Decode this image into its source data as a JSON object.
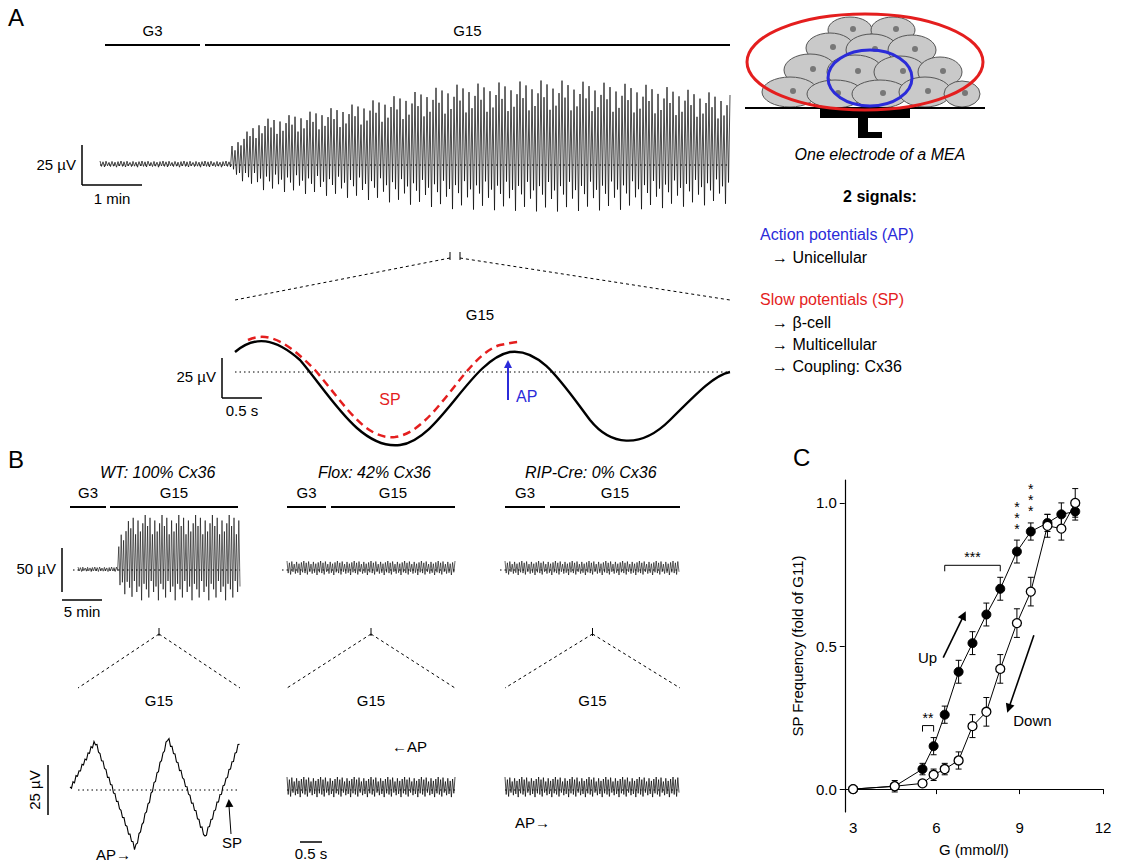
{
  "panels": {
    "A": {
      "letter": "A",
      "stimulus": [
        "G3",
        "G15"
      ],
      "scale_bar": {
        "vertical": "25 µV",
        "horizontal": "1 min"
      },
      "zoom": {
        "stimulus": "G15",
        "scale_bar": {
          "vertical": "25 µV",
          "horizontal": "0.5 s"
        },
        "sp_label": "SP",
        "ap_label": "AP"
      },
      "diagram": {
        "caption": "One electrode of a MEA",
        "heading": "2 signals:",
        "items": [
          {
            "title": "Action potentials (AP)",
            "color": "#2b2bd9",
            "lines": [
              "→ Unicellular"
            ]
          },
          {
            "title": "Slow potentials (SP)",
            "color": "#e41e1e",
            "lines": [
              "→ β-cell",
              "→ Multicellular",
              "→ Coupling: Cx36"
            ]
          }
        ]
      }
    },
    "B": {
      "letter": "B",
      "scale_bar": {
        "vertical": "50 µV",
        "horizontal": "5 min"
      },
      "zoom_scale_bar": {
        "vertical": "25 µV",
        "horizontal": "0.5 s"
      },
      "columns": [
        {
          "title": "WT: 100% Cx36",
          "stimulus": [
            "G3",
            "G15"
          ],
          "zoom": "G15",
          "labels": [
            "AP→",
            "SP"
          ]
        },
        {
          "title": "Flox: 42% Cx36",
          "stimulus": [
            "G3",
            "G15"
          ],
          "zoom": "G15",
          "labels": [
            "←AP"
          ]
        },
        {
          "title": "RIP-Cre: 0% Cx36",
          "stimulus": [
            "G3",
            "G15"
          ],
          "zoom": "G15",
          "labels": [
            "AP→"
          ]
        }
      ]
    }
  },
  "chart_data": {
    "type": "line",
    "title": "C",
    "x_label": "G (mmol/l)",
    "y_label": "SP Frequency (fold of G11)",
    "xlim": [
      2.7,
      12
    ],
    "xticks": [
      3,
      6,
      9,
      12
    ],
    "ylim": [
      -0.08,
      1.08
    ],
    "yticks": [
      {
        "value": 0,
        "label": "0.0"
      },
      {
        "value": 0.5,
        "label": "0.5"
      },
      {
        "value": 1,
        "label": "1.0"
      }
    ],
    "grid": false,
    "x": [
      3,
      4.5,
      5.5,
      5.9,
      6.3,
      6.8,
      7.3,
      7.8,
      8.3,
      8.9,
      9.4,
      10,
      10.5,
      11
    ],
    "series": [
      {
        "name": "Up",
        "color": "#000000",
        "marker": "filled",
        "values": [
          0,
          0.01,
          0.07,
          0.15,
          0.26,
          0.41,
          0.51,
          0.61,
          0.7,
          0.83,
          0.9,
          0.93,
          0.96,
          0.97
        ],
        "errors": [
          0.01,
          0.02,
          0.02,
          0.03,
          0.03,
          0.04,
          0.04,
          0.04,
          0.04,
          0.04,
          0.03,
          0.03,
          0.04,
          0.03
        ]
      },
      {
        "name": "Down",
        "color": "#000000",
        "marker": "open",
        "values": [
          0,
          0.01,
          0.02,
          0.05,
          0.07,
          0.1,
          0.22,
          0.27,
          0.42,
          0.58,
          0.69,
          0.92,
          0.91,
          1.0
        ],
        "errors": [
          0.01,
          0.01,
          0.01,
          0.02,
          0.02,
          0.03,
          0.04,
          0.05,
          0.05,
          0.05,
          0.05,
          0.04,
          0.04,
          0.05
        ]
      }
    ],
    "annotations": [
      {
        "text": "**",
        "span": [
          5.5,
          5.9
        ]
      },
      {
        "text": "***",
        "span": [
          6.3,
          8.3
        ]
      },
      {
        "text": "***",
        "span": [
          8.9,
          8.9
        ]
      },
      {
        "text": "***",
        "span": [
          9.4,
          9.4
        ]
      }
    ]
  }
}
